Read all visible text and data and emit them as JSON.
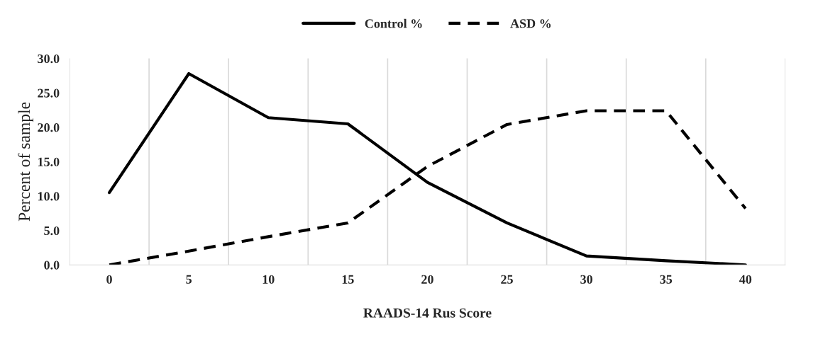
{
  "chart_data": {
    "type": "line",
    "xlabel": "RAADS-14 Rus Score",
    "ylabel": "Percent of sample",
    "categories": [
      "0",
      "5",
      "10",
      "15",
      "20",
      "25",
      "30",
      "35",
      "40"
    ],
    "series": [
      {
        "name": "Control %",
        "color": "#000000",
        "line_style": "solid",
        "values": [
          10.5,
          27.8,
          21.4,
          20.5,
          12.0,
          6.1,
          1.3,
          0.6,
          0.0
        ]
      },
      {
        "name": "ASD %",
        "color": "#000000",
        "line_style": "dashed",
        "values": [
          0.0,
          2.0,
          4.1,
          6.1,
          14.3,
          20.4,
          22.4,
          22.4,
          8.2
        ]
      }
    ],
    "ylim": [
      0,
      30
    ],
    "yticks": [
      {
        "value": 0,
        "label": "0.0"
      },
      {
        "value": 5,
        "label": "5.0"
      },
      {
        "value": 10,
        "label": "10.0"
      },
      {
        "value": 15,
        "label": "15.0"
      },
      {
        "value": 20,
        "label": "20.0"
      },
      {
        "value": 25,
        "label": "25.0"
      },
      {
        "value": 30,
        "label": "30.0"
      }
    ],
    "grid": "x",
    "legend": "top",
    "marker": "none"
  }
}
